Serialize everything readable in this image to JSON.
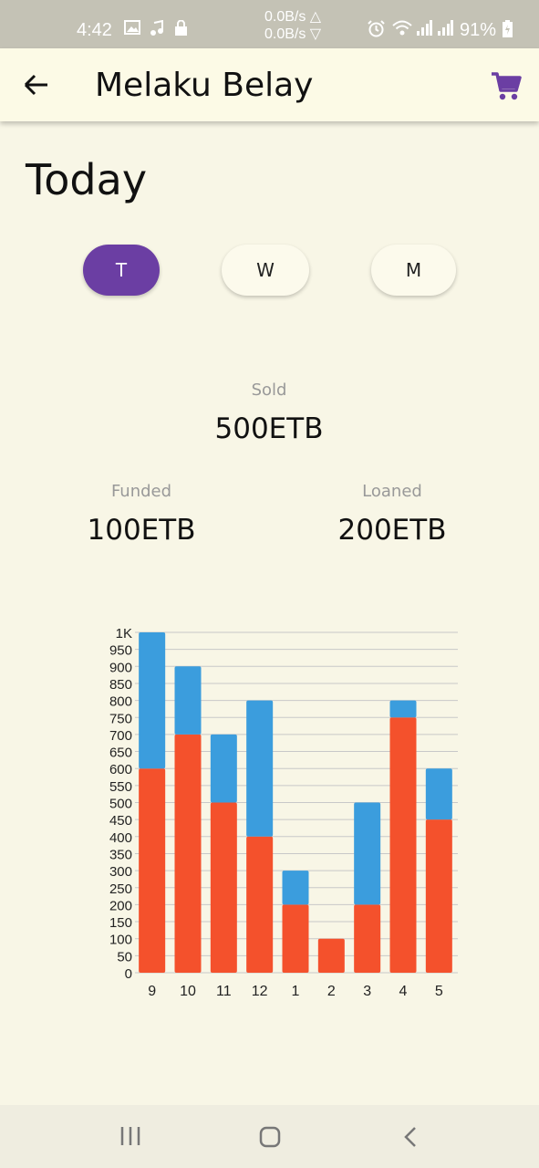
{
  "status_bar": {
    "time": "4:42",
    "net_up": "0.0B/s △",
    "net_down": "0.0B/s ▽",
    "battery": "91%"
  },
  "app_bar": {
    "title": "Melaku Belay",
    "back_icon": "arrow-left-icon",
    "cart_icon": "shopping-cart-icon",
    "accent": "#6b3ea3"
  },
  "page": {
    "heading": "Today"
  },
  "period_tabs": [
    {
      "label": "T",
      "active": true
    },
    {
      "label": "W",
      "active": false
    },
    {
      "label": "M",
      "active": false
    }
  ],
  "stats": {
    "sold": {
      "label": "Sold",
      "value": "500ETB"
    },
    "funded": {
      "label": "Funded",
      "value": "100ETB"
    },
    "loaned": {
      "label": "Loaned",
      "value": "200ETB"
    }
  },
  "chart_data": {
    "type": "bar",
    "stacked": true,
    "categories": [
      "9",
      "10",
      "11",
      "12",
      "1",
      "2",
      "3",
      "4",
      "5"
    ],
    "series": [
      {
        "color": "#f4512c",
        "values": [
          600,
          700,
          500,
          400,
          200,
          100,
          200,
          750,
          450
        ]
      },
      {
        "color": "#3b9ddd",
        "values": [
          400,
          200,
          200,
          400,
          100,
          0,
          300,
          50,
          150
        ]
      }
    ],
    "ylim": [
      0,
      1000
    ],
    "yticks": [
      "0",
      "50",
      "100",
      "150",
      "200",
      "250",
      "300",
      "350",
      "400",
      "450",
      "500",
      "550",
      "600",
      "650",
      "700",
      "750",
      "800",
      "850",
      "900",
      "950",
      "1K"
    ],
    "grid": true
  },
  "nav_bar": {
    "recents_icon": "recents-icon",
    "home_icon": "home-icon",
    "back_icon": "back-chevron-icon"
  }
}
